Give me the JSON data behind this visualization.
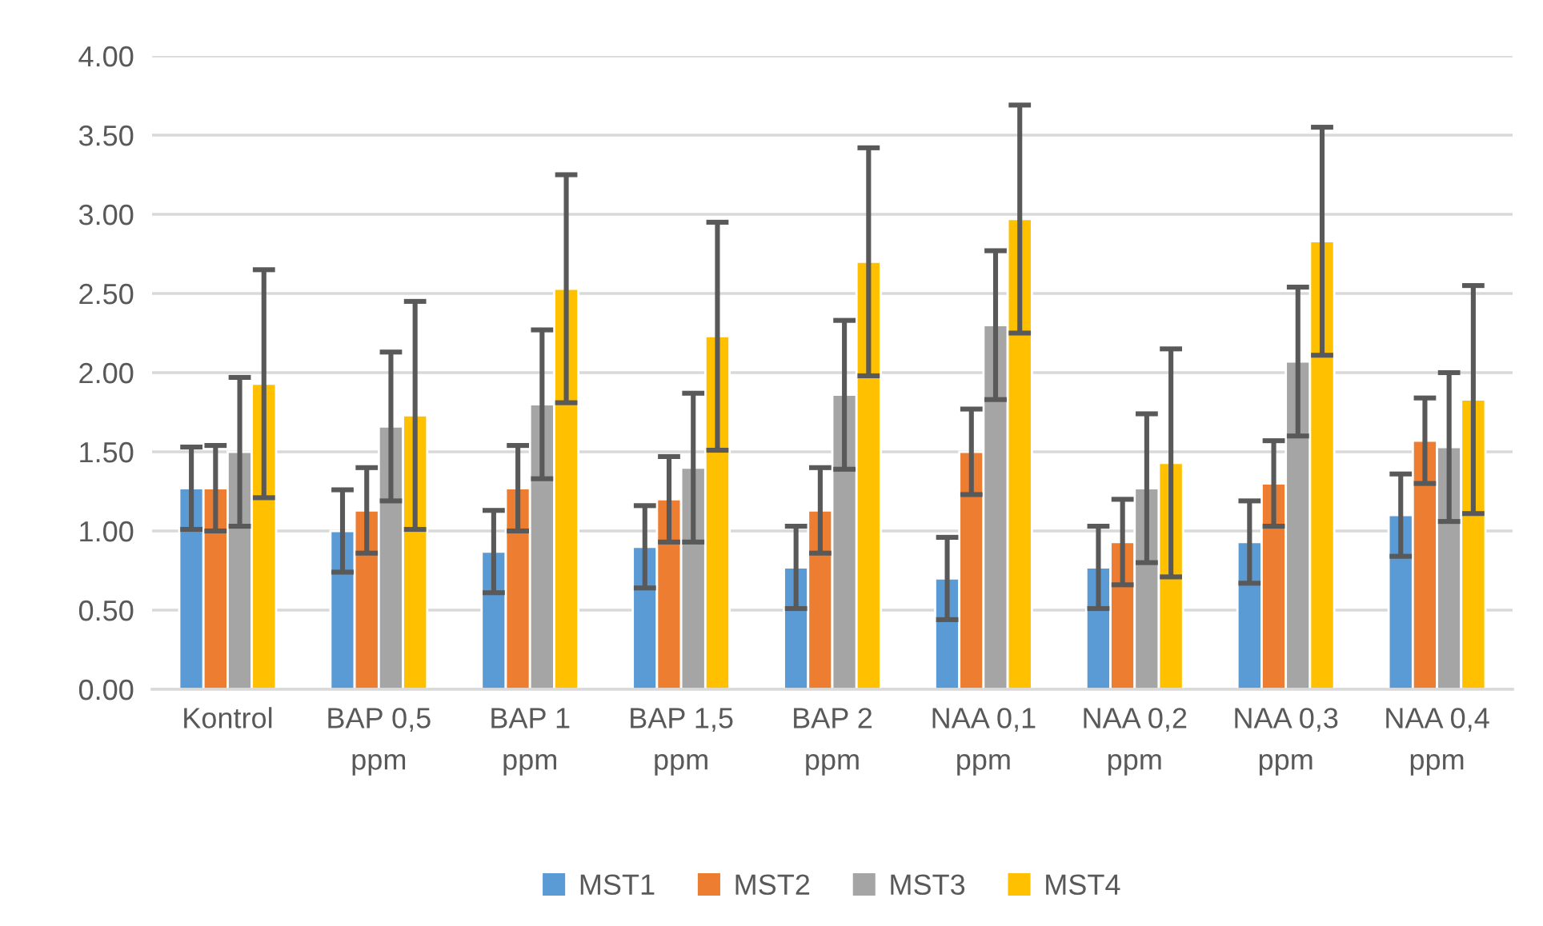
{
  "chart_data": {
    "type": "bar",
    "categories": [
      "Kontrol",
      "BAP 0,5 ppm",
      "BAP 1 ppm",
      "BAP 1,5 ppm",
      "BAP 2 ppm",
      "NAA 0,1 ppm",
      "NAA 0,2 ppm",
      "NAA 0,3 ppm",
      "NAA 0,4 ppm"
    ],
    "series": [
      {
        "name": "MST1",
        "color": "#5b9bd5",
        "values": [
          1.27,
          1.0,
          0.87,
          0.9,
          0.77,
          0.7,
          0.77,
          0.93,
          1.1
        ],
        "errors": [
          0.26,
          0.26,
          0.26,
          0.26,
          0.26,
          0.26,
          0.26,
          0.26,
          0.26
        ]
      },
      {
        "name": "MST2",
        "color": "#ed7d31",
        "values": [
          1.27,
          1.13,
          1.27,
          1.2,
          1.13,
          1.5,
          0.93,
          1.3,
          1.57
        ],
        "errors": [
          0.27,
          0.27,
          0.27,
          0.27,
          0.27,
          0.27,
          0.27,
          0.27,
          0.27
        ]
      },
      {
        "name": "MST3",
        "color": "#a5a5a5",
        "values": [
          1.5,
          1.66,
          1.8,
          1.4,
          1.86,
          2.3,
          1.27,
          2.07,
          1.53
        ],
        "errors": [
          0.47,
          0.47,
          0.47,
          0.47,
          0.47,
          0.47,
          0.47,
          0.47,
          0.47
        ]
      },
      {
        "name": "MST4",
        "color": "#ffc000",
        "values": [
          1.93,
          1.73,
          2.53,
          2.23,
          2.7,
          2.97,
          1.43,
          2.83,
          1.83
        ],
        "errors": [
          0.72,
          0.72,
          0.72,
          0.72,
          0.72,
          0.72,
          0.72,
          0.72,
          0.72
        ]
      }
    ],
    "ylim": [
      0,
      4
    ],
    "yticks": [
      {
        "value": 0,
        "label": "0.00"
      },
      {
        "value": 0.5,
        "label": "0.50"
      },
      {
        "value": 1,
        "label": "1.00"
      },
      {
        "value": 1.5,
        "label": "1.50"
      },
      {
        "value": 2,
        "label": "2.00"
      },
      {
        "value": 2.5,
        "label": "2.50"
      },
      {
        "value": 3,
        "label": "3.00"
      },
      {
        "value": 3.5,
        "label": "3.50"
      },
      {
        "value": 4,
        "label": "4.00"
      }
    ],
    "grid": "y",
    "legend": "bottom"
  }
}
